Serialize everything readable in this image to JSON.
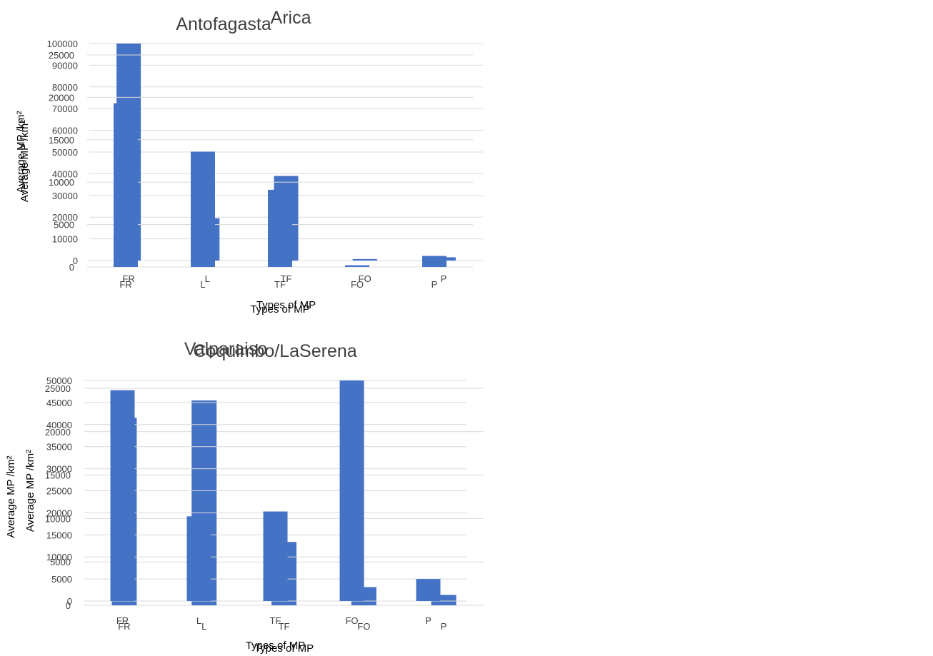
{
  "chart_data": [
    {
      "type": "bar",
      "title": "Arica",
      "xlabel": "Types of MP",
      "ylabel": "Average MP /km²",
      "categories": [
        "FR",
        "L",
        "TF",
        "FO",
        "P"
      ],
      "values": [
        100000,
        19500,
        39000,
        700,
        1500
      ],
      "ylim": [
        0,
        100000
      ],
      "yticks": [
        "0",
        "10000",
        "20000",
        "30000",
        "40000",
        "50000",
        "60000",
        "70000",
        "80000",
        "90000",
        "100000"
      ],
      "grid": true,
      "bar_color": "#4472c4"
    },
    {
      "type": "bar",
      "title": "Antofagasta",
      "xlabel": "Types of MP",
      "ylabel": "Average MP /km²",
      "categories": [
        "FR",
        "L",
        "TF",
        "FO",
        "P"
      ],
      "values": [
        19300,
        13600,
        9100,
        200,
        1300
      ],
      "ylim": [
        0,
        25000
      ],
      "yticks": [
        "0",
        "5000",
        "10000",
        "15000",
        "20000",
        "25000"
      ],
      "grid": true,
      "bar_color": "#4472c4"
    },
    {
      "type": "bar",
      "title": "Coquimbo/LaSerena",
      "xlabel": "Types of MP",
      "ylabel": "Average MP /km²",
      "categories": [
        "FR",
        "L",
        "TF",
        "FO",
        "P"
      ],
      "values": [
        21600,
        23600,
        7300,
        2100,
        1200
      ],
      "ylim": [
        0,
        25000
      ],
      "yticks": [
        "0",
        "5000",
        "10000",
        "15000",
        "20000",
        "25000"
      ],
      "grid": true,
      "bar_color": "#4472c4"
    },
    {
      "type": "bar",
      "title": "Valparaiso",
      "xlabel": "Types of MP",
      "ylabel": "Average MP /km²",
      "categories": [
        "FR",
        "L",
        "TF",
        "FO",
        "P"
      ],
      "values": [
        47800,
        19200,
        20300,
        50000,
        5000
      ],
      "ylim": [
        0,
        50000
      ],
      "yticks": [
        "0",
        "5000",
        "10000",
        "15000",
        "20000",
        "25000",
        "30000",
        "35000",
        "40000",
        "45000",
        "50000"
      ],
      "grid": true,
      "bar_color": "#4472c4"
    }
  ]
}
